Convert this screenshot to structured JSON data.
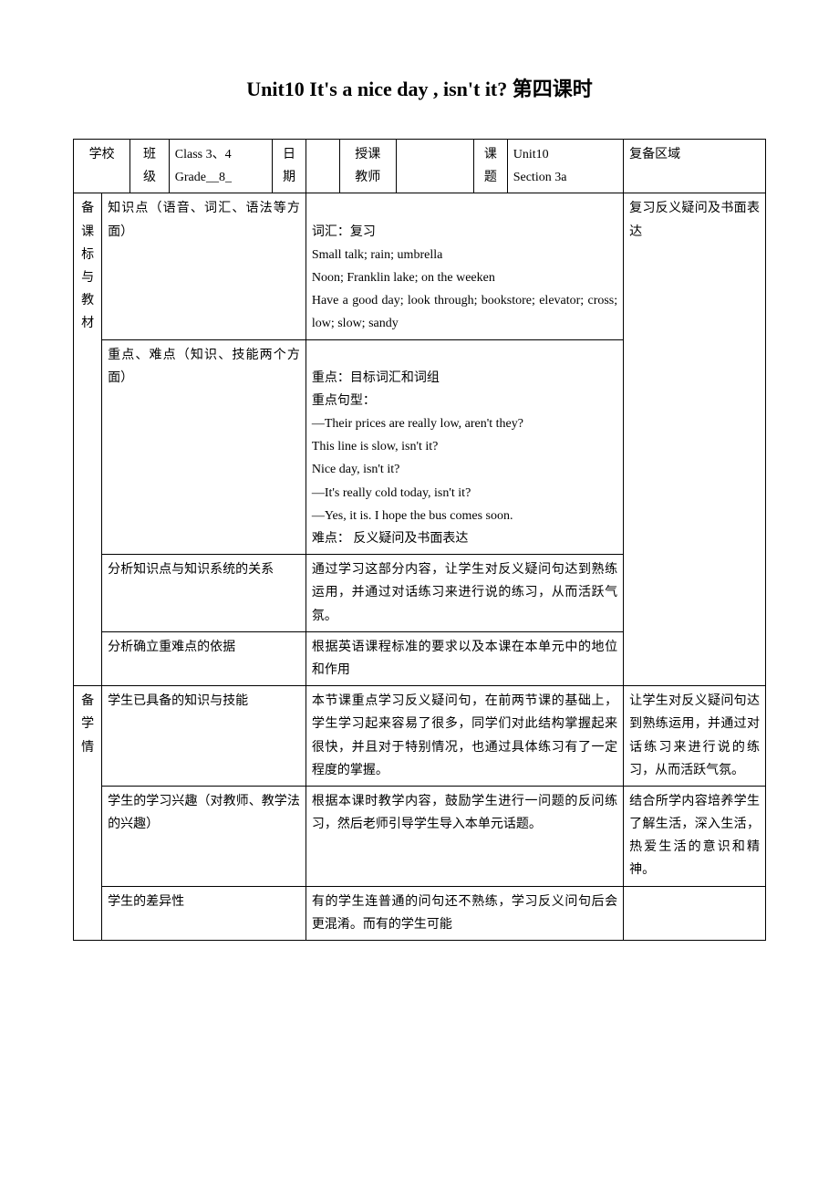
{
  "title": "Unit10    It's a nice day , isn't it?  第四课时",
  "header": {
    "school_label": "学校",
    "class_label_1": "班",
    "class_label_2": "级",
    "class_val_1": "Class 3、4",
    "class_val_2": "Grade__8_",
    "date_label_1": "日",
    "date_label_2": "期",
    "teacher_label_1": "授课",
    "teacher_label_2": "教师",
    "topic_label_1": "课",
    "topic_label_2": "题",
    "topic_val_1": "Unit10",
    "topic_val_2": "Section 3a",
    "fubei_label": "复备区域"
  },
  "section1": {
    "side_1": "备 课",
    "side_2": "标 与",
    "side_3": "教 材",
    "row1_label": "知识点（语音、词汇、语法等方面）",
    "row1_content": "词汇：复习\nSmall talk; rain; umbrella\nNoon; Franklin lake; on the weeken\nHave a good day; look through; bookstore; elevator; cross; low; slow; sandy",
    "row1_fubei": "复习反义疑问及书面表达",
    "row2_label": "重点、难点（知识、技能两个方面）",
    "row2_content": "重点：目标词汇和词组\n重点句型：\n        —Their prices are really low, aren't they?\n            This line is slow, isn't it?\n          Nice day, isn't it?\n        —It's really cold today, isn't it?\n                      —Yes, it is. I hope the bus comes soon.\n难点：   反义疑问及书面表达",
    "row3_label": "分析知识点与知识系统的关系",
    "row3_content": "  通过学习这部分内容，让学生对反义疑问句达到熟练运用，并通过对话练习来进行说的练习，从而活跃气氛。",
    "row4_label": "分析确立重难点的依据",
    "row4_content": "根据英语课程标准的要求以及本课在本单元中的地位和作用"
  },
  "section2": {
    "side_1": "备 学",
    "side_2": "情",
    "row1_label": "学生已具备的知识与技能",
    "row1_content": "    本节课重点学习反义疑问句，在前两节课的基础上，学生学习起来容易了很多，同学们对此结构掌握起来很快，并且对于特别情况，也通过具体练习有了一定程度的掌握。",
    "row1_fubei": "让学生对反义疑问句达到熟练运用，并通过对话练习来进行说的练习，从而活跃气氛。",
    "row2_label": "学生的学习兴趣（对教师、教学法的兴趣）",
    "row2_content": "根据本课时教学内容，鼓励学生进行一问题的反问练习，然后老师引导学生导入本单元话题。",
    "row2_fubei": "结合所学内容培养学生了解生活，深入生活，热爱生活的意识和精神。",
    "row3_label": "学生的差异性",
    "row3_content": "有的学生连普通的问句还不熟练，学习反义问句后会更混淆。而有的学生可能"
  }
}
